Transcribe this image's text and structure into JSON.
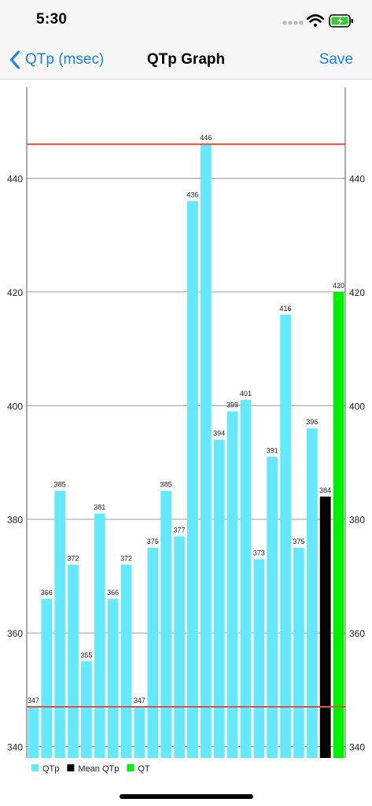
{
  "status_bar": {
    "time": "5:30"
  },
  "nav": {
    "back_label": "QTp (msec)",
    "title": "QTp Graph",
    "save_label": "Save"
  },
  "colors": {
    "accent": "#1a7ff0",
    "qtp": "#66e9ff",
    "mean_qtp": "#000000",
    "qt": "#00ee00",
    "reference_line": "#e74c3c",
    "grid": "#9e9e9e"
  },
  "icons": {
    "back": "chevron-left-icon",
    "signal": "signal-dots-icon",
    "wifi": "wifi-icon",
    "battery": "battery-charging-icon"
  },
  "chart_data": {
    "type": "bar",
    "title": "",
    "xlabel": "",
    "ylabel": "",
    "ylim": [
      338,
      456
    ],
    "yticks": [
      340,
      360,
      380,
      400,
      420,
      440
    ],
    "grid": true,
    "legend_position": "bottom-left",
    "series": [
      {
        "name": "QTp",
        "color": "#66e9ff",
        "values": [
          347,
          366,
          385,
          372,
          355,
          381,
          366,
          372,
          347,
          375,
          385,
          377,
          436,
          446,
          394,
          399,
          401,
          373,
          391,
          416,
          375,
          396
        ]
      },
      {
        "name": "Mean QTp",
        "color": "#000000",
        "values": [
          384
        ]
      },
      {
        "name": "QT",
        "color": "#00ee00",
        "values": [
          420
        ]
      }
    ],
    "reference_lines": [
      {
        "value": 446,
        "color": "#e74c3c"
      },
      {
        "value": 347,
        "color": "#e74c3c"
      }
    ]
  }
}
